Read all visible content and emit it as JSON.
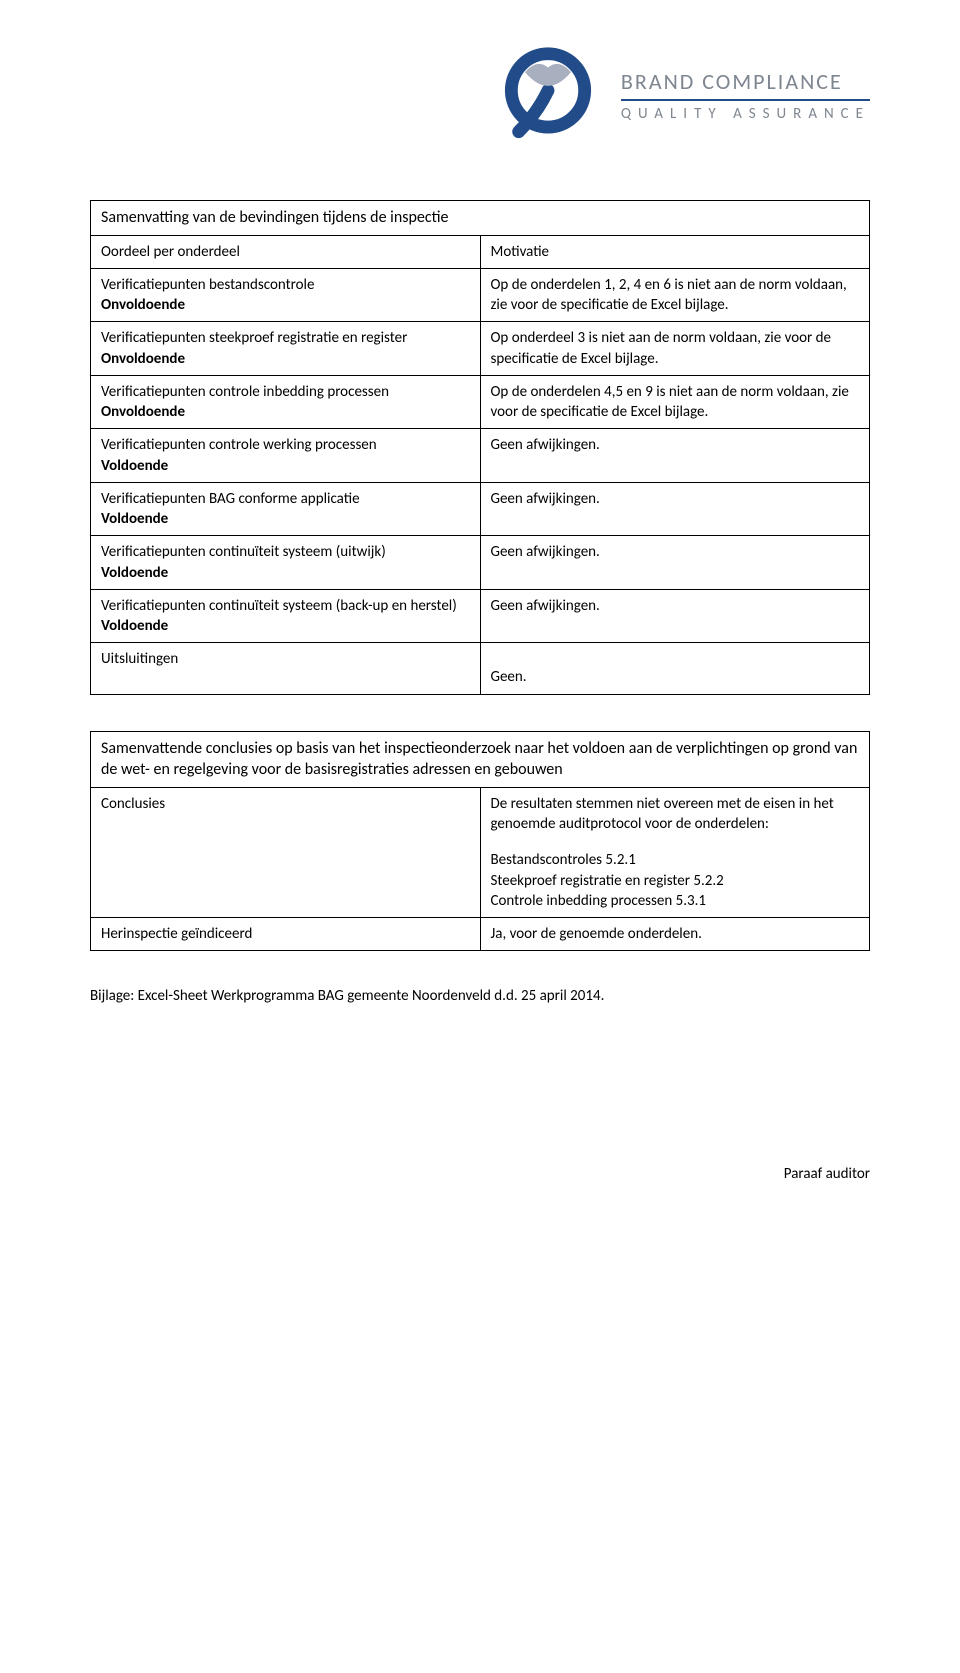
{
  "logo": {
    "brand_line1": "BRAND COMPLIANCE",
    "brand_line2": "QUALITY ASSURANCE",
    "colors": {
      "navy": "#224b8a",
      "grey": "#7e8690",
      "light": "#a8b0c0"
    }
  },
  "table1": {
    "title": "Samenvatting van de bevindingen tijdens de inspectie",
    "header_left": "Oordeel per onderdeel",
    "header_right": "Motivatie",
    "rows": [
      {
        "left_text": "Verificatiepunten bestandscontrole",
        "left_status": "Onvoldoende",
        "right": "Op de onderdelen 1, 2, 4 en 6 is niet aan de norm voldaan, zie voor de specificatie de Excel bijlage."
      },
      {
        "left_text": "Verificatiepunten steekproef registratie en register",
        "left_status": "Onvoldoende",
        "right": "Op onderdeel 3 is niet aan de norm voldaan, zie voor de specificatie de Excel bijlage."
      },
      {
        "left_text": "Verificatiepunten controle inbedding processen",
        "left_status": "Onvoldoende",
        "right": "Op de onderdelen 4,5 en 9 is niet aan de norm voldaan, zie voor de specificatie de Excel bijlage."
      },
      {
        "left_text": "Verificatiepunten controle werking processen",
        "left_status": "Voldoende",
        "right": "Geen afwijkingen."
      },
      {
        "left_text": "Verificatiepunten BAG conforme applicatie",
        "left_status": "Voldoende",
        "right": "Geen afwijkingen."
      },
      {
        "left_text": "Verificatiepunten continuïteit systeem (uitwijk)",
        "left_status": "Voldoende",
        "right": "Geen afwijkingen."
      },
      {
        "left_text": "Verificatiepunten continuïteit systeem (back-up en herstel)",
        "left_status": "Voldoende",
        "right": "Geen afwijkingen."
      },
      {
        "left_text": "Uitsluitingen",
        "left_status": "",
        "right": "Geen."
      }
    ]
  },
  "table2": {
    "title": "Samenvattende conclusies op basis van het inspectieonderzoek naar het voldoen aan de verplichtingen op grond van de wet- en regelgeving voor de basisregistraties adressen en gebouwen",
    "row1_left": "Conclusies",
    "row1_right_intro": "De resultaten stemmen niet overeen met de eisen in het genoemde auditprotocol voor de onderdelen:",
    "row1_right_items": [
      "Bestandscontroles 5.2.1",
      "Steekproef registratie en register 5.2.2",
      "Controle inbedding processen  5.3.1"
    ],
    "row2_left": "Herinspectie geïndiceerd",
    "row2_right": "Ja, voor de genoemde onderdelen."
  },
  "footer": "Bijlage: Excel-Sheet Werkprogramma BAG gemeente Noordenveld d.d. 25 april 2014.",
  "paraaf": "Paraaf auditor"
}
